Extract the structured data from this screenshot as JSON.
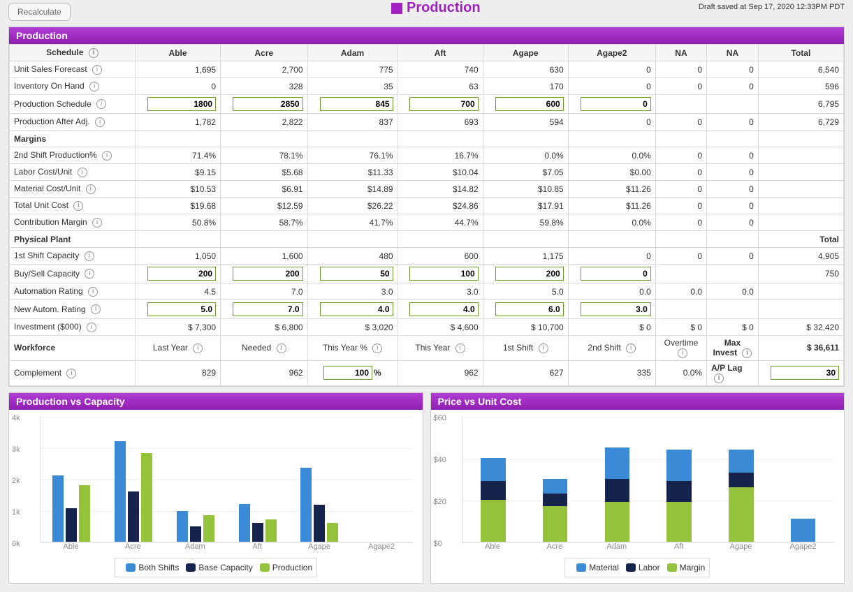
{
  "header": {
    "recalculate": "Recalculate",
    "pageTitle": "Production",
    "draftSaved": "Draft saved at Sep 17, 2020 12:33PM PDT"
  },
  "colors": {
    "purple": "#9b2bbf",
    "inputBorder": "#6a9e2a",
    "barBlue": "#3a8ad6",
    "barNavy": "#16234a",
    "barGreen": "#94c23d"
  },
  "production": {
    "title": "Production",
    "columns": [
      "Able",
      "Acre",
      "Adam",
      "Aft",
      "Agape",
      "Agape2",
      "NA",
      "NA",
      "Total"
    ],
    "schedule": {
      "section": "Schedule",
      "rows": {
        "unitSalesForecast": {
          "label": "Unit Sales Forecast",
          "vals": [
            "1,695",
            "2,700",
            "775",
            "740",
            "630",
            "0",
            "0",
            "0",
            "6,540"
          ]
        },
        "inventoryOnHand": {
          "label": "Inventory On Hand",
          "vals": [
            "0",
            "328",
            "35",
            "63",
            "170",
            "0",
            "0",
            "0",
            "596"
          ]
        },
        "productionSchedule": {
          "label": "Production Schedule",
          "inputs": [
            "1800",
            "2850",
            "845",
            "700",
            "600",
            "0"
          ],
          "total": "6,795"
        },
        "productionAfterAdj": {
          "label": "Production After Adj.",
          "vals": [
            "1,782",
            "2,822",
            "837",
            "693",
            "594",
            "0",
            "0",
            "0",
            "6,729"
          ]
        }
      }
    },
    "margins": {
      "section": "Margins",
      "rows": {
        "secondShift": {
          "label": "2nd Shift Production%",
          "vals": [
            "71.4%",
            "78.1%",
            "76.1%",
            "16.7%",
            "0.0%",
            "0.0%",
            "0",
            "0",
            ""
          ]
        },
        "laborCost": {
          "label": "Labor Cost/Unit",
          "vals": [
            "$9.15",
            "$5.68",
            "$11.33",
            "$10.04",
            "$7.05",
            "$0.00",
            "0",
            "0",
            ""
          ]
        },
        "materialCost": {
          "label": "Material Cost/Unit",
          "vals": [
            "$10.53",
            "$6.91",
            "$14.89",
            "$14.82",
            "$10.85",
            "$11.26",
            "0",
            "0",
            ""
          ]
        },
        "totalUnit": {
          "label": "Total Unit Cost",
          "vals": [
            "$19.68",
            "$12.59",
            "$26.22",
            "$24.86",
            "$17.91",
            "$11.26",
            "0",
            "0",
            ""
          ]
        },
        "contribMargin": {
          "label": "Contribution Margin",
          "vals": [
            "50.8%",
            "58.7%",
            "41.7%",
            "44.7%",
            "59.8%",
            "0.0%",
            "0",
            "0",
            ""
          ]
        }
      }
    },
    "plant": {
      "section": "Physical Plant",
      "totalLabel": "Total",
      "rows": {
        "firstShift": {
          "label": "1st Shift Capacity",
          "vals": [
            "1,050",
            "1,600",
            "480",
            "600",
            "1,175",
            "0",
            "0",
            "0",
            "4,905"
          ]
        },
        "buySell": {
          "label": "Buy/Sell Capacity",
          "inputs": [
            "200",
            "200",
            "50",
            "100",
            "200",
            "0"
          ],
          "total": "750"
        },
        "autoRating": {
          "label": "Automation Rating",
          "vals": [
            "4.5",
            "7.0",
            "3.0",
            "3.0",
            "5.0",
            "0.0",
            "0.0",
            "0.0",
            ""
          ]
        },
        "newAuto": {
          "label": "New Autom. Rating",
          "inputs": [
            "5.0",
            "7.0",
            "4.0",
            "4.0",
            "6.0",
            "3.0"
          ]
        },
        "investment": {
          "label": "Investment ($000)",
          "vals": [
            "$ 7,300",
            "$ 6,800",
            "$ 3,020",
            "$ 4,600",
            "$ 10,700",
            "$ 0",
            "$ 0",
            "$ 0",
            "$ 32,420"
          ]
        }
      }
    },
    "workforce": {
      "section": "Workforce",
      "subheads": [
        "Last Year",
        "Needed",
        "This Year %",
        "This Year",
        "1st Shift",
        "2nd Shift",
        "Overtime",
        "Max Invest"
      ],
      "maxInvest": "$ 36,611",
      "complement": {
        "label": "Complement",
        "vals": [
          "829",
          "962"
        ],
        "thisYearPct": "100",
        "rest": [
          "962",
          "627",
          "335",
          "0.0%"
        ],
        "apLagLabel": "A/P Lag",
        "apLag": "30"
      }
    }
  },
  "chart1": {
    "title": "Production vs Capacity",
    "ymax": 4000,
    "yticks": [
      0,
      1000,
      2000,
      3000,
      4000
    ],
    "yticklabels": [
      "0k",
      "1k",
      "2k",
      "3k",
      "4k"
    ],
    "categories": [
      "Able",
      "Acre",
      "Adam",
      "Aft",
      "Agape",
      "Agape2"
    ],
    "series": [
      {
        "name": "Both Shifts",
        "color": "#3a8ad6",
        "values": [
          2100,
          3200,
          960,
          1200,
          2350,
          0
        ]
      },
      {
        "name": "Base Capacity",
        "color": "#16234a",
        "values": [
          1050,
          1600,
          480,
          600,
          1175,
          0
        ]
      },
      {
        "name": "Production",
        "color": "#94c23d",
        "values": [
          1782,
          2822,
          837,
          693,
          594,
          0
        ]
      }
    ]
  },
  "chart2": {
    "title": "Price vs Unit Cost",
    "ymax": 60,
    "yticks": [
      0,
      20,
      40,
      60
    ],
    "yticklabels": [
      "$0",
      "$20",
      "$40",
      "$60"
    ],
    "categories": [
      "Able",
      "Acre",
      "Adam",
      "Aft",
      "Agape",
      "Agape2"
    ],
    "stacks": [
      {
        "name": "Margin",
        "color": "#94c23d",
        "values": [
          20,
          17,
          19,
          19,
          26,
          0
        ]
      },
      {
        "name": "Labor",
        "color": "#16234a",
        "values": [
          9,
          6,
          11,
          10,
          7,
          0
        ]
      },
      {
        "name": "Material",
        "color": "#3a8ad6",
        "values": [
          11,
          7,
          15,
          15,
          11,
          11
        ]
      }
    ],
    "legend": [
      "Material",
      "Labor",
      "Margin"
    ]
  }
}
